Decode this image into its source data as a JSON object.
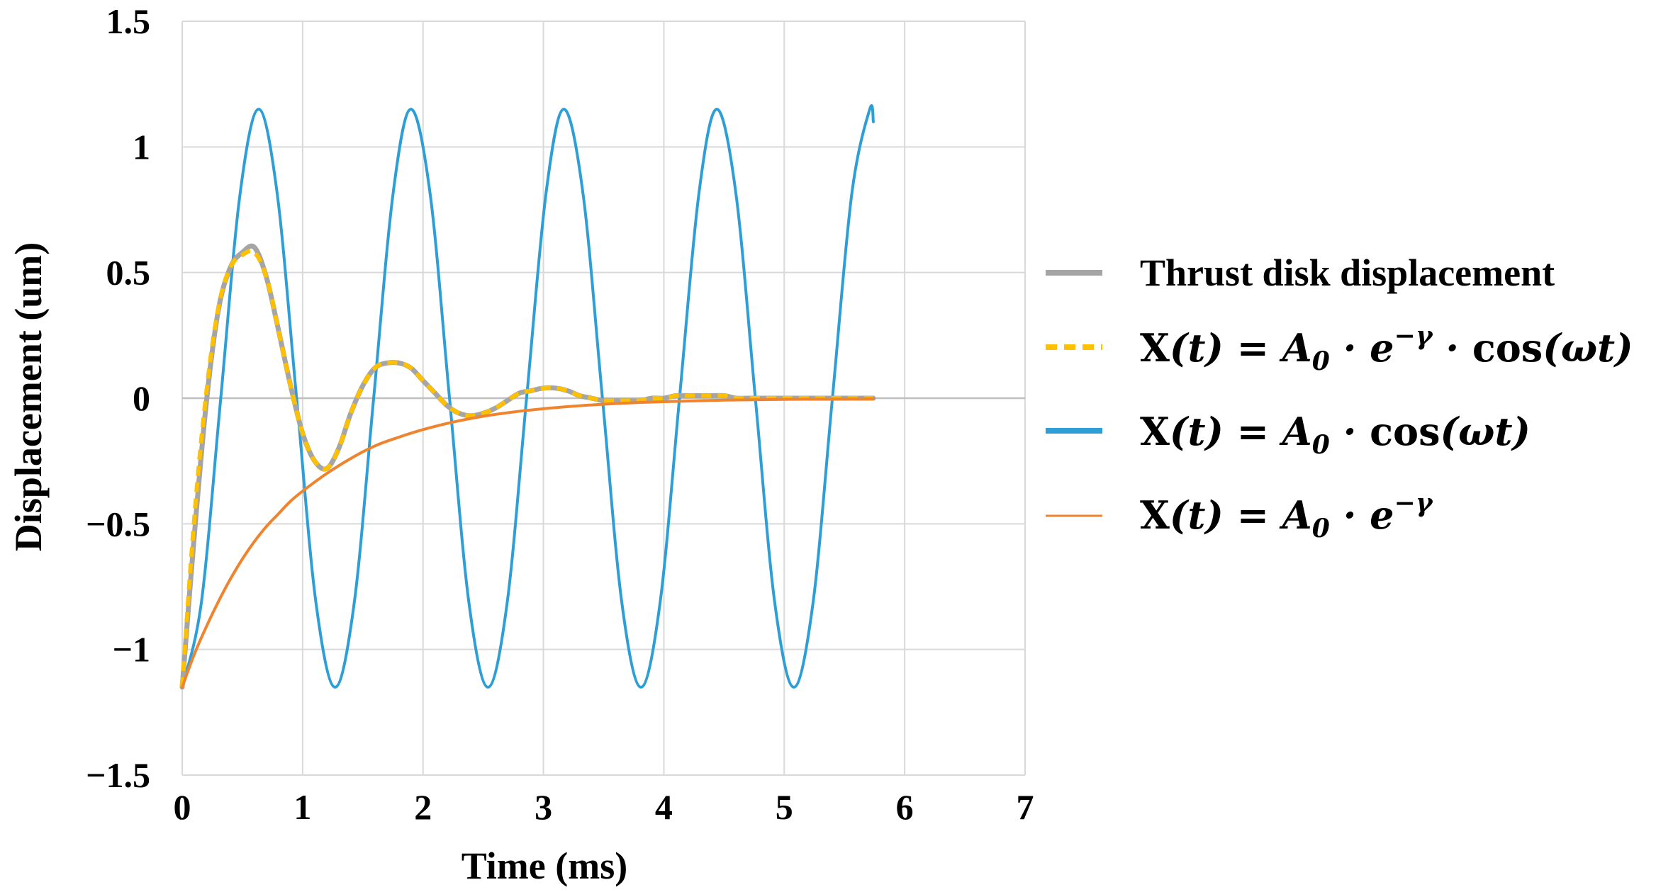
{
  "chart_data": {
    "type": "line",
    "title": "",
    "xlabel": "Time  (ms)",
    "ylabel": "Displacement  (um)",
    "xlim": [
      0,
      7
    ],
    "ylim": [
      -1.5,
      1.5
    ],
    "grid": true,
    "legend_position": "right",
    "x_ticks": [
      0,
      1,
      2,
      3,
      4,
      5,
      6,
      7
    ],
    "x_tick_labels": [
      "0",
      "1",
      "2",
      "3",
      "4",
      "5",
      "6",
      "7"
    ],
    "y_ticks": [
      1.5,
      1,
      0.5,
      0,
      -0.5,
      -1,
      -1.5
    ],
    "y_tick_labels": [
      "1.5",
      "1",
      "0.5",
      "0",
      "−0.5",
      "−1",
      "−1.5"
    ],
    "series": [
      {
        "name": "Thrust disk displacement",
        "color": "#a5a5a5",
        "style": "solid",
        "x": [
          0,
          0.1,
          0.2,
          0.3,
          0.4,
          0.5,
          0.6,
          0.7,
          0.8,
          0.9,
          1.0,
          1.1,
          1.2,
          1.3,
          1.4,
          1.5,
          1.6,
          1.7,
          1.8,
          1.9,
          2.0,
          2.1,
          2.2,
          2.3,
          2.4,
          2.5,
          2.6,
          2.7,
          2.8,
          2.9,
          3.0,
          3.1,
          3.2,
          3.3,
          3.4,
          3.5,
          3.6,
          3.7,
          3.8,
          3.9,
          4.0,
          4.1,
          4.2,
          4.3,
          4.4,
          4.5,
          4.6,
          4.7,
          4.8,
          4.9,
          5.0,
          5.2,
          5.4,
          5.6,
          5.74
        ],
        "y": [
          -1.15,
          -0.55,
          -0.02,
          0.35,
          0.52,
          0.58,
          0.6,
          0.48,
          0.27,
          0.05,
          -0.14,
          -0.25,
          -0.28,
          -0.2,
          -0.06,
          0.05,
          0.12,
          0.14,
          0.14,
          0.12,
          0.07,
          0.02,
          -0.03,
          -0.06,
          -0.07,
          -0.06,
          -0.04,
          -0.01,
          0.02,
          0.03,
          0.04,
          0.04,
          0.03,
          0.01,
          0.0,
          -0.01,
          -0.01,
          -0.01,
          -0.01,
          0.0,
          0.0,
          0.01,
          0.01,
          0.01,
          0.01,
          0.01,
          0.0,
          0.0,
          0.0,
          0.0,
          0.0,
          0.0,
          0.0,
          0.0,
          0.0
        ]
      },
      {
        "name": "X(t) = A0 · e^(−γ) · cos(ωt)",
        "color": "#ffc000",
        "style": "dashed",
        "x": [
          0,
          0.1,
          0.2,
          0.3,
          0.4,
          0.5,
          0.6,
          0.7,
          0.8,
          0.9,
          1.0,
          1.1,
          1.2,
          1.3,
          1.4,
          1.5,
          1.6,
          1.7,
          1.8,
          1.9,
          2.0,
          2.1,
          2.2,
          2.3,
          2.4,
          2.5,
          2.6,
          2.7,
          2.8,
          2.9,
          3.0,
          3.1,
          3.2,
          3.3,
          3.4,
          3.5,
          3.6,
          3.7,
          3.8,
          3.9,
          4.0,
          4.1,
          4.2,
          4.3,
          4.4,
          4.5,
          4.6,
          4.7,
          4.8,
          4.9,
          5.0,
          5.2,
          5.4,
          5.6,
          5.74
        ],
        "y": [
          -1.15,
          -0.48,
          0.02,
          0.36,
          0.52,
          0.57,
          0.58,
          0.48,
          0.27,
          0.05,
          -0.14,
          -0.25,
          -0.28,
          -0.2,
          -0.06,
          0.05,
          0.12,
          0.14,
          0.14,
          0.12,
          0.07,
          0.02,
          -0.03,
          -0.06,
          -0.07,
          -0.06,
          -0.04,
          -0.01,
          0.02,
          0.03,
          0.04,
          0.04,
          0.03,
          0.01,
          0.0,
          -0.01,
          -0.01,
          -0.01,
          -0.01,
          0.0,
          0.0,
          0.01,
          0.01,
          0.01,
          0.01,
          0.01,
          0.0,
          0.0,
          0.0,
          0.0,
          0.0,
          0.0,
          0.0,
          0.0,
          0.0
        ]
      },
      {
        "name": "X(t) = A0 · cos(ωt)",
        "color": "#2e9fd6",
        "style": "solid",
        "x": [
          0,
          0.16,
          0.32,
          0.48,
          0.635,
          0.79,
          0.95,
          1.11,
          1.27,
          1.43,
          1.59,
          1.75,
          1.9,
          2.06,
          2.22,
          2.38,
          2.54,
          2.7,
          2.86,
          3.02,
          3.17,
          3.33,
          3.49,
          3.65,
          3.81,
          3.97,
          4.13,
          4.29,
          4.44,
          4.6,
          4.76,
          4.92,
          5.08,
          5.24,
          5.4,
          5.56,
          5.71,
          5.74
        ],
        "y": [
          -1.15,
          -0.81,
          0.0,
          0.81,
          1.15,
          0.81,
          0.0,
          -0.81,
          -1.15,
          -0.81,
          0.0,
          0.81,
          1.15,
          0.81,
          0.0,
          -0.81,
          -1.15,
          -0.81,
          0.0,
          0.81,
          1.15,
          0.81,
          0.0,
          -0.81,
          -1.15,
          -0.81,
          0.0,
          0.81,
          1.15,
          0.81,
          0.0,
          -0.81,
          -1.15,
          -0.81,
          0.0,
          0.81,
          1.15,
          1.1
        ]
      },
      {
        "name": "X(t) = A0 · e^(−γ)",
        "color": "#f0832d",
        "style": "solid",
        "x": [
          0,
          0.1,
          0.2,
          0.3,
          0.4,
          0.5,
          0.6,
          0.7,
          0.8,
          0.9,
          1.0,
          1.2,
          1.4,
          1.6,
          1.8,
          2.0,
          2.25,
          2.5,
          2.75,
          3.0,
          3.25,
          3.5,
          3.75,
          4.0,
          4.5,
          5.0,
          5.5,
          5.74
        ],
        "y": [
          -1.15,
          -1.02,
          -0.91,
          -0.81,
          -0.72,
          -0.64,
          -0.57,
          -0.51,
          -0.46,
          -0.41,
          -0.37,
          -0.3,
          -0.24,
          -0.19,
          -0.155,
          -0.125,
          -0.095,
          -0.072,
          -0.055,
          -0.042,
          -0.032,
          -0.024,
          -0.018,
          -0.014,
          -0.008,
          -0.005,
          -0.003,
          -0.002
        ]
      }
    ]
  },
  "legend": {
    "thrust": "Thrust disk displacement",
    "damped_cos": {
      "lhs": "X",
      "var": "(t) = A",
      "sub": "0",
      "mid": " · e",
      "sup": "−γ",
      "tail1": " · ",
      "cos": "cos",
      "tail2": "(ωt)"
    },
    "cos": {
      "lhs": "X",
      "var": "(t) = A",
      "sub": "0",
      "mid": " · ",
      "cos": "cos",
      "tail": "(ωt)"
    },
    "exp": {
      "lhs": "X",
      "var": "(t) = A",
      "sub": "0",
      "mid": " · e",
      "sup": "−γ"
    }
  }
}
